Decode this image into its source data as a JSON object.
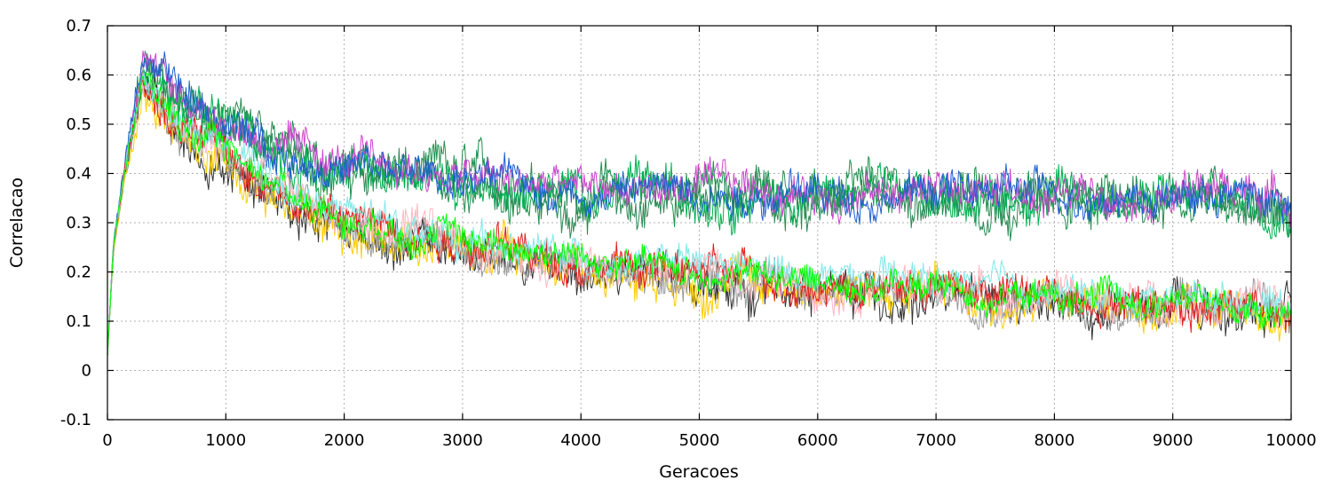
{
  "chart_data": {
    "type": "line",
    "title": "",
    "xlabel": "Geracoes",
    "ylabel": "Correlacao",
    "xlim": [
      0,
      10000
    ],
    "ylim": [
      -0.1,
      0.7
    ],
    "xticks": [
      0,
      1000,
      2000,
      3000,
      4000,
      5000,
      6000,
      7000,
      8000,
      9000,
      10000
    ],
    "yticks": [
      -0.1,
      0,
      0.1,
      0.2,
      0.3,
      0.4,
      0.5,
      0.6,
      0.7
    ],
    "xtick_labels": [
      "0",
      "1000",
      "2000",
      "3000",
      "4000",
      "5000",
      "6000",
      "7000",
      "8000",
      "9000",
      "10000"
    ],
    "ytick_labels": [
      "-0.1",
      "0",
      "0.1",
      "0.2",
      "0.3",
      "0.4",
      "0.5",
      "0.6",
      "0.7"
    ],
    "grid": true,
    "legend": "none",
    "x": [
      0,
      50,
      150,
      300,
      600,
      1000,
      1500,
      2000,
      2500,
      3000,
      3500,
      4000,
      4500,
      5000,
      5500,
      6000,
      6500,
      7000,
      7500,
      8000,
      8500,
      9000,
      9500,
      10000
    ],
    "series": [
      {
        "color": "#1f8f4e",
        "noise": 0.045,
        "values": [
          0.03,
          0.25,
          0.42,
          0.62,
          0.55,
          0.5,
          0.44,
          0.4,
          0.4,
          0.39,
          0.37,
          0.36,
          0.37,
          0.37,
          0.36,
          0.35,
          0.35,
          0.37,
          0.35,
          0.35,
          0.36,
          0.35,
          0.36,
          0.33
        ]
      },
      {
        "color": "#2e8b57",
        "noise": 0.04,
        "values": [
          0.03,
          0.24,
          0.4,
          0.6,
          0.54,
          0.49,
          0.43,
          0.39,
          0.39,
          0.38,
          0.36,
          0.35,
          0.36,
          0.36,
          0.35,
          0.34,
          0.34,
          0.36,
          0.34,
          0.35,
          0.35,
          0.34,
          0.35,
          0.32
        ]
      },
      {
        "color": "#00b050",
        "noise": 0.04,
        "values": [
          0.03,
          0.25,
          0.41,
          0.61,
          0.54,
          0.5,
          0.43,
          0.4,
          0.39,
          0.38,
          0.37,
          0.36,
          0.37,
          0.36,
          0.36,
          0.35,
          0.35,
          0.36,
          0.35,
          0.36,
          0.35,
          0.35,
          0.36,
          0.34
        ]
      },
      {
        "color": "#cc44cc",
        "noise": 0.035,
        "values": [
          0.03,
          0.25,
          0.42,
          0.63,
          0.56,
          0.51,
          0.45,
          0.42,
          0.41,
          0.39,
          0.38,
          0.37,
          0.37,
          0.37,
          0.37,
          0.36,
          0.36,
          0.37,
          0.36,
          0.36,
          0.37,
          0.36,
          0.37,
          0.35
        ]
      },
      {
        "color": "#1e5fd0",
        "noise": 0.035,
        "values": [
          0.03,
          0.26,
          0.43,
          0.64,
          0.56,
          0.5,
          0.44,
          0.41,
          0.4,
          0.39,
          0.38,
          0.36,
          0.37,
          0.37,
          0.36,
          0.36,
          0.35,
          0.37,
          0.36,
          0.36,
          0.36,
          0.35,
          0.36,
          0.34
        ]
      },
      {
        "color": "#333333",
        "noise": 0.04,
        "values": [
          0.03,
          0.24,
          0.4,
          0.58,
          0.48,
          0.42,
          0.35,
          0.29,
          0.26,
          0.24,
          0.21,
          0.2,
          0.19,
          0.18,
          0.17,
          0.16,
          0.15,
          0.15,
          0.13,
          0.12,
          0.12,
          0.12,
          0.11,
          0.11
        ]
      },
      {
        "color": "#ffcc00",
        "noise": 0.04,
        "values": [
          0.03,
          0.24,
          0.4,
          0.57,
          0.47,
          0.42,
          0.34,
          0.29,
          0.27,
          0.25,
          0.23,
          0.21,
          0.2,
          0.19,
          0.18,
          0.17,
          0.16,
          0.16,
          0.14,
          0.14,
          0.13,
          0.13,
          0.12,
          0.12
        ]
      },
      {
        "color": "#999999",
        "noise": 0.035,
        "values": [
          0.03,
          0.25,
          0.41,
          0.58,
          0.48,
          0.43,
          0.35,
          0.3,
          0.27,
          0.25,
          0.22,
          0.21,
          0.2,
          0.19,
          0.18,
          0.17,
          0.16,
          0.16,
          0.15,
          0.14,
          0.13,
          0.13,
          0.13,
          0.12
        ]
      },
      {
        "color": "#ffb6c1",
        "noise": 0.035,
        "values": [
          0.03,
          0.25,
          0.41,
          0.59,
          0.49,
          0.44,
          0.36,
          0.31,
          0.28,
          0.26,
          0.24,
          0.22,
          0.21,
          0.2,
          0.19,
          0.18,
          0.17,
          0.17,
          0.16,
          0.15,
          0.14,
          0.14,
          0.14,
          0.13
        ]
      },
      {
        "color": "#e02020",
        "noise": 0.035,
        "values": [
          0.03,
          0.25,
          0.41,
          0.59,
          0.49,
          0.44,
          0.36,
          0.31,
          0.29,
          0.27,
          0.24,
          0.22,
          0.21,
          0.2,
          0.19,
          0.18,
          0.17,
          0.17,
          0.16,
          0.15,
          0.15,
          0.14,
          0.14,
          0.13
        ]
      },
      {
        "color": "#80e8e8",
        "noise": 0.03,
        "values": [
          0.03,
          0.25,
          0.41,
          0.59,
          0.5,
          0.45,
          0.37,
          0.32,
          0.29,
          0.27,
          0.25,
          0.23,
          0.22,
          0.21,
          0.2,
          0.19,
          0.18,
          0.18,
          0.17,
          0.16,
          0.15,
          0.15,
          0.15,
          0.14
        ]
      },
      {
        "color": "#00ff00",
        "noise": 0.03,
        "values": [
          0.03,
          0.25,
          0.42,
          0.6,
          0.5,
          0.45,
          0.37,
          0.31,
          0.29,
          0.27,
          0.25,
          0.23,
          0.21,
          0.2,
          0.19,
          0.18,
          0.17,
          0.17,
          0.15,
          0.15,
          0.14,
          0.14,
          0.13,
          0.13
        ]
      }
    ]
  }
}
